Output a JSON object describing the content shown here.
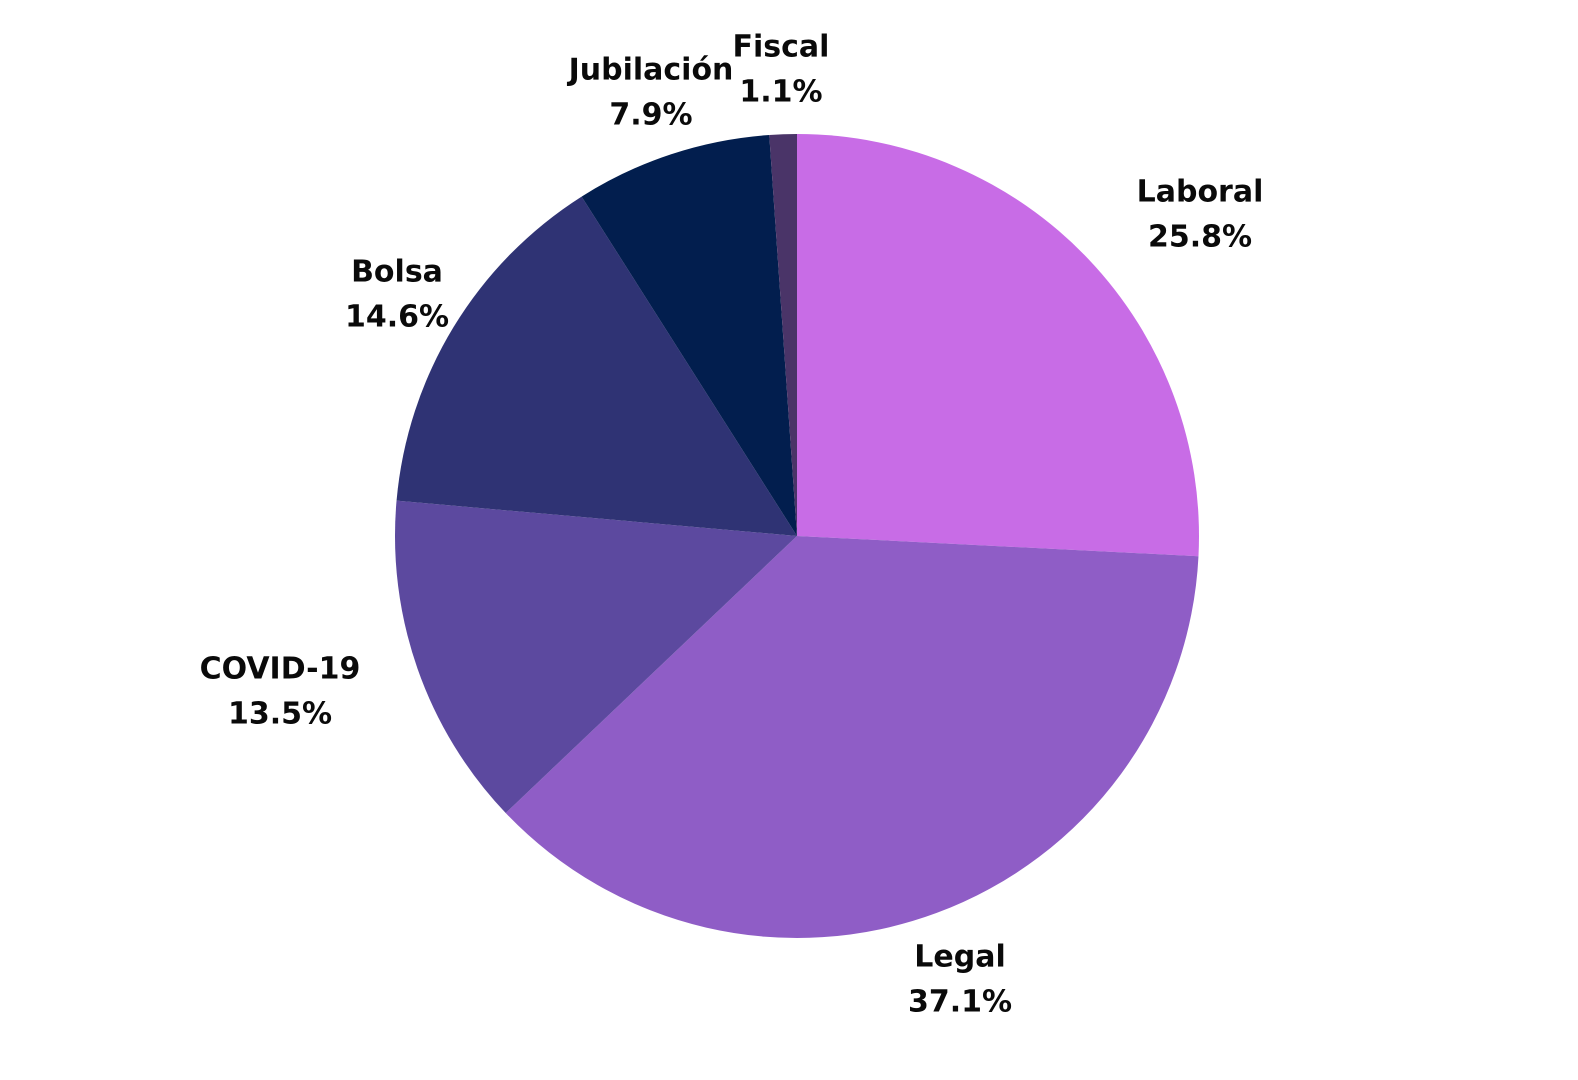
{
  "chart_data": {
    "type": "pie",
    "title": "",
    "start_angle_deg": 0,
    "direction": "clockwise",
    "slices": [
      {
        "label": "Laboral",
        "value": 25.8,
        "value_label": "25.8%",
        "color": "#c86ce6"
      },
      {
        "label": "Legal",
        "value": 37.1,
        "value_label": "37.1%",
        "color": "#8f5dc6"
      },
      {
        "label": "COVID-19",
        "value": 13.5,
        "value_label": "13.5%",
        "color": "#5c499f"
      },
      {
        "label": "Bolsa",
        "value": 14.6,
        "value_label": "14.6%",
        "color": "#2f3374"
      },
      {
        "label": "Jubilación",
        "value": 7.9,
        "value_label": "7.9%",
        "color": "#021e4e"
      },
      {
        "label": "Fiscal",
        "value": 1.1,
        "value_label": "1.1%",
        "color": "#4a3468"
      }
    ]
  }
}
